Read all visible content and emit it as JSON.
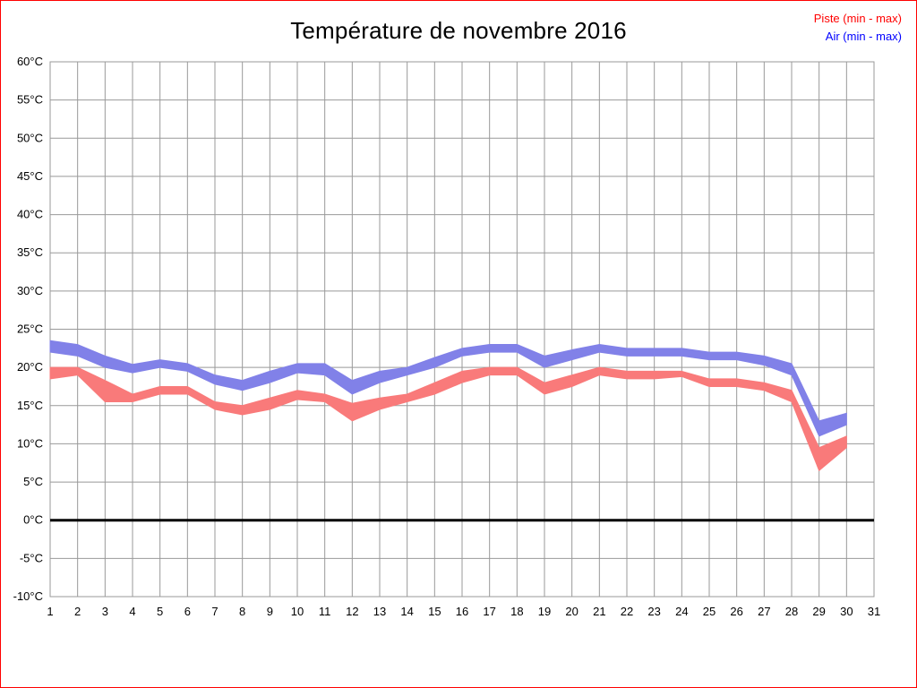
{
  "page": {
    "background": "#ffffff",
    "border_color": "#ff0000"
  },
  "header": {
    "title": "Température de novembre 2016"
  },
  "legend": {
    "piste_label": "Piste (min - max)",
    "air_label": "Air (min - max)",
    "piste_color": "#ff0000",
    "air_color": "#0000ff"
  },
  "chart_data": {
    "type": "area",
    "title": "Température de novembre 2016",
    "xlabel": "",
    "ylabel": "",
    "xlim": [
      1,
      31
    ],
    "ylim": [
      -10,
      60
    ],
    "grid": true,
    "grid_color": "#999999",
    "x_ticks": [
      1,
      2,
      3,
      4,
      5,
      6,
      7,
      8,
      9,
      10,
      11,
      12,
      13,
      14,
      15,
      16,
      17,
      18,
      19,
      20,
      21,
      22,
      23,
      24,
      25,
      26,
      27,
      28,
      29,
      30,
      31
    ],
    "y_tick_labels": [
      "60°C",
      "55°C",
      "50°C",
      "45°C",
      "40°C",
      "35°C",
      "30°C",
      "25°C",
      "20°C",
      "15°C",
      "10°C",
      "5°C",
      "0°C",
      "-5°C",
      "-10°C"
    ],
    "zero_line": {
      "value": 0,
      "color": "#000000",
      "width": 3
    },
    "x": [
      1,
      2,
      3,
      4,
      5,
      6,
      7,
      8,
      9,
      10,
      11,
      12,
      13,
      14,
      15,
      16,
      17,
      18,
      19,
      20,
      21,
      22,
      23,
      24,
      25,
      26,
      27,
      28,
      29,
      30
    ],
    "series": [
      {
        "name": "Air (min - max)",
        "color": "#8181e8",
        "min": [
          22.0,
          21.5,
          20.0,
          19.3,
          20.0,
          19.5,
          17.8,
          17.0,
          18.0,
          19.3,
          19.0,
          16.5,
          18.0,
          19.0,
          20.0,
          21.5,
          22.0,
          22.0,
          20.0,
          21.0,
          22.0,
          21.5,
          21.5,
          21.5,
          21.0,
          21.0,
          20.3,
          19.0,
          11.0,
          12.5
        ],
        "max": [
          23.5,
          23.0,
          21.5,
          20.4,
          21.0,
          20.5,
          19.0,
          18.3,
          19.5,
          20.5,
          20.5,
          18.3,
          19.5,
          20.0,
          21.3,
          22.5,
          23.0,
          23.0,
          21.5,
          22.3,
          23.0,
          22.5,
          22.5,
          22.5,
          22.0,
          22.0,
          21.5,
          20.5,
          13.0,
          14.0
        ]
      },
      {
        "name": "Piste (min - max)",
        "color": "#f97a7a",
        "min": [
          18.5,
          19.0,
          15.5,
          15.5,
          16.5,
          16.5,
          14.5,
          13.8,
          14.5,
          15.8,
          15.5,
          13.0,
          14.5,
          15.5,
          16.5,
          18.0,
          19.0,
          19.0,
          16.5,
          17.5,
          19.0,
          18.5,
          18.5,
          18.8,
          17.5,
          17.5,
          17.0,
          15.5,
          6.5,
          9.5
        ],
        "max": [
          20.0,
          20.0,
          18.3,
          16.5,
          17.5,
          17.5,
          15.5,
          15.0,
          16.0,
          17.0,
          16.5,
          15.3,
          16.0,
          16.5,
          18.0,
          19.5,
          20.0,
          20.0,
          18.0,
          19.0,
          20.0,
          19.5,
          19.5,
          19.5,
          18.5,
          18.5,
          18.0,
          17.0,
          9.5,
          11.0
        ]
      }
    ]
  }
}
